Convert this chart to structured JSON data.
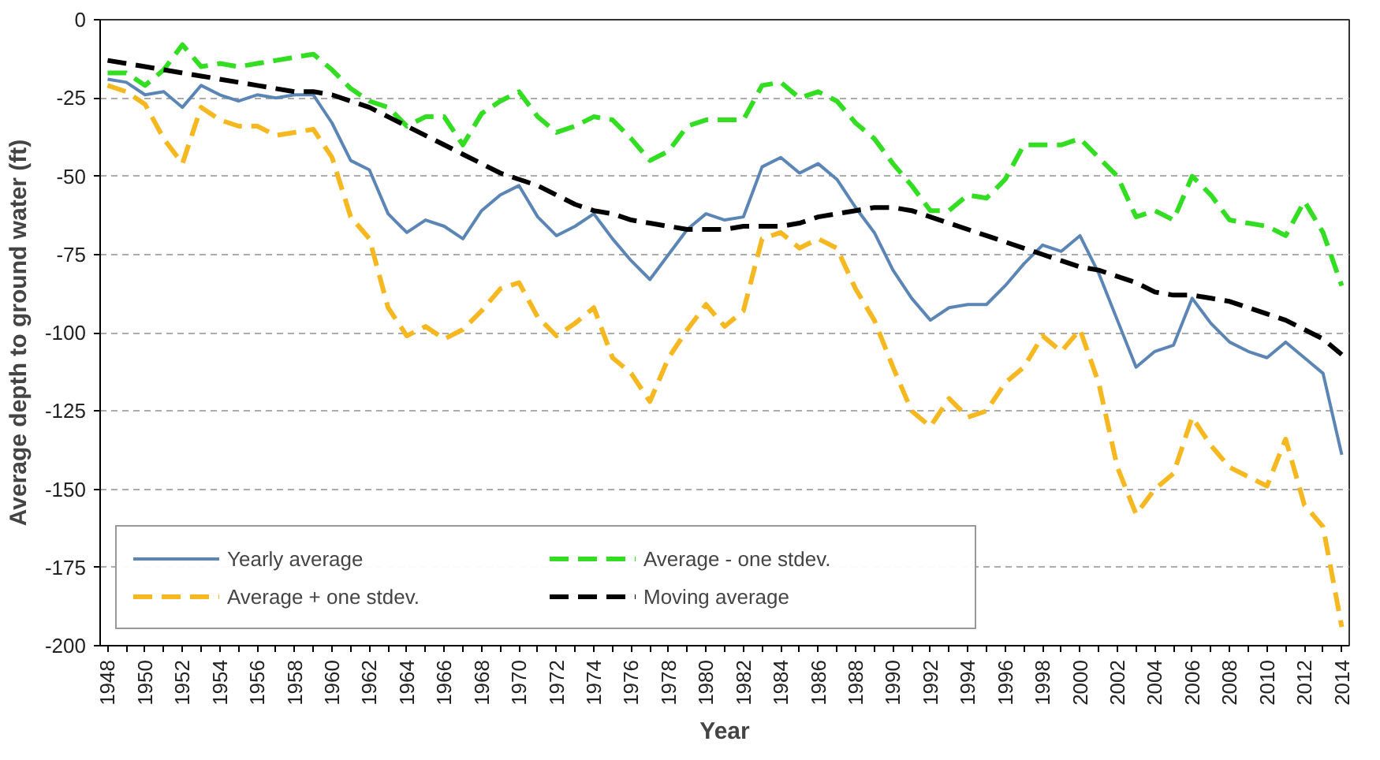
{
  "chart_data": {
    "type": "line",
    "xlabel": "Year",
    "ylabel": "Average depth to ground water (ft)",
    "x": [
      1948,
      1949,
      1950,
      1951,
      1952,
      1953,
      1954,
      1955,
      1956,
      1957,
      1958,
      1959,
      1960,
      1961,
      1962,
      1963,
      1964,
      1965,
      1966,
      1967,
      1968,
      1969,
      1970,
      1971,
      1972,
      1973,
      1974,
      1975,
      1976,
      1977,
      1978,
      1979,
      1980,
      1981,
      1982,
      1983,
      1984,
      1985,
      1986,
      1987,
      1988,
      1989,
      1990,
      1991,
      1992,
      1993,
      1994,
      1995,
      1996,
      1997,
      1998,
      1999,
      2000,
      2001,
      2002,
      2003,
      2004,
      2005,
      2006,
      2007,
      2008,
      2009,
      2010,
      2011,
      2012,
      2013,
      2014
    ],
    "series": [
      {
        "name": "Yearly average",
        "color": "#5b85b5",
        "line_style": "solid",
        "values": [
          -19,
          -20,
          -24,
          -23,
          -28,
          -21,
          -24,
          -26,
          -24,
          -25,
          -24,
          -24,
          -33,
          -45,
          -48,
          -62,
          -68,
          -64,
          -66,
          -70,
          -61,
          -56,
          -53,
          -63,
          -69,
          -66,
          -62,
          -70,
          -77,
          -83,
          -75,
          -67,
          -62,
          -64,
          -63,
          -47,
          -44,
          -49,
          -46,
          -51,
          -60,
          -68,
          -80,
          -89,
          -96,
          -92,
          -91,
          -91,
          -85,
          -78,
          -72,
          -74,
          -69,
          -81,
          -96,
          -111,
          -106,
          -104,
          -89,
          -97,
          -103,
          -106,
          -108,
          -103,
          -108,
          -113,
          -139
        ]
      },
      {
        "name": "Average + one stdev.",
        "color": "#f5b820",
        "line_style": "dashed",
        "values": [
          -21,
          -23,
          -27,
          -38,
          -46,
          -28,
          -32,
          -34,
          -34,
          -37,
          -36,
          -35,
          -44,
          -63,
          -70,
          -92,
          -101,
          -98,
          -102,
          -99,
          -93,
          -86,
          -84,
          -95,
          -101,
          -97,
          -92,
          -108,
          -113,
          -122,
          -108,
          -99,
          -91,
          -98,
          -93,
          -70,
          -68,
          -73,
          -70,
          -73,
          -86,
          -96,
          -111,
          -125,
          -130,
          -121,
          -127,
          -125,
          -116,
          -111,
          -101,
          -106,
          -99,
          -116,
          -143,
          -158,
          -150,
          -145,
          -127,
          -136,
          -143,
          -146,
          -149,
          -134,
          -155,
          -162,
          -194
        ]
      },
      {
        "name": "Average - one stdev.",
        "color": "#33dd22",
        "line_style": "dashed",
        "values": [
          -17,
          -17,
          -21,
          -16,
          -8,
          -15,
          -14,
          -15,
          -14,
          -13,
          -12,
          -11,
          -16,
          -22,
          -26,
          -28,
          -34,
          -31,
          -31,
          -40,
          -30,
          -26,
          -23,
          -31,
          -36,
          -34,
          -31,
          -32,
          -38,
          -45,
          -42,
          -34,
          -32,
          -32,
          -32,
          -21,
          -20,
          -25,
          -23,
          -26,
          -33,
          -38,
          -46,
          -53,
          -61,
          -61,
          -56,
          -57,
          -51,
          -40,
          -40,
          -40,
          -38,
          -44,
          -50,
          -63,
          -61,
          -64,
          -50,
          -56,
          -64,
          -65,
          -66,
          -69,
          -58,
          -68,
          -85
        ]
      },
      {
        "name": "Moving average",
        "color": "#000000",
        "line_style": "dashed",
        "values": [
          -13,
          -14,
          -15,
          -16,
          -17,
          -18,
          -19,
          -20,
          -21,
          -22,
          -23,
          -23,
          -24,
          -26,
          -28,
          -31,
          -34,
          -37,
          -40,
          -43,
          -46,
          -49,
          -51,
          -53,
          -56,
          -59,
          -61,
          -62,
          -64,
          -65,
          -66,
          -67,
          -67,
          -67,
          -66,
          -66,
          -66,
          -65,
          -63,
          -62,
          -61,
          -60,
          -60,
          -61,
          -63,
          -65,
          -67,
          -69,
          -71,
          -73,
          -75,
          -77,
          -79,
          -80,
          -82,
          -84,
          -87,
          -88,
          -88,
          -89,
          -90,
          -92,
          -94,
          -96,
          -99,
          -102,
          -107
        ]
      }
    ],
    "xlim": [
      1947.6,
      2014.4
    ],
    "xticks": [
      1948,
      {
        "value": 1949,
        "label": null
      },
      1950,
      {
        "value": 1951,
        "label": null
      },
      1952,
      {
        "value": 1953,
        "label": null
      },
      1954,
      {
        "value": 1955,
        "label": null
      },
      1956,
      {
        "value": 1957,
        "label": null
      },
      1958,
      {
        "value": 1959,
        "label": null
      },
      1960,
      {
        "value": 1961,
        "label": null
      },
      1962,
      {
        "value": 1963,
        "label": null
      },
      1964,
      {
        "value": 1965,
        "label": null
      },
      1966,
      {
        "value": 1967,
        "label": null
      },
      1968,
      {
        "value": 1969,
        "label": null
      },
      1970,
      {
        "value": 1971,
        "label": null
      },
      1972,
      {
        "value": 1973,
        "label": null
      },
      1974,
      {
        "value": 1975,
        "label": null
      },
      1976,
      {
        "value": 1977,
        "label": null
      },
      1978,
      {
        "value": 1979,
        "label": null
      },
      1980,
      {
        "value": 1981,
        "label": null
      },
      1982,
      {
        "value": 1983,
        "label": null
      },
      1984,
      {
        "value": 1985,
        "label": null
      },
      1986,
      {
        "value": 1987,
        "label": null
      },
      1988,
      {
        "value": 1989,
        "label": null
      },
      1990,
      {
        "value": 1991,
        "label": null
      },
      1992,
      {
        "value": 1993,
        "label": null
      },
      1994,
      {
        "value": 1995,
        "label": null
      },
      1996,
      {
        "value": 1997,
        "label": null
      },
      1998,
      {
        "value": 1999,
        "label": null
      },
      2000,
      {
        "value": 2001,
        "label": null
      },
      2002,
      {
        "value": 2003,
        "label": null
      },
      2004,
      {
        "value": 2005,
        "label": null
      },
      2006,
      {
        "value": 2007,
        "label": null
      },
      2008,
      {
        "value": 2009,
        "label": null
      },
      2010,
      {
        "value": 2011,
        "label": null
      },
      2012,
      {
        "value": 2013,
        "label": null
      },
      2014
    ],
    "ylim": [
      -200,
      0
    ],
    "yticks": [
      -200,
      -175,
      -150,
      -125,
      -100,
      -75,
      -50,
      -25,
      0
    ],
    "grid": "y",
    "legend": "bottom left",
    "marker": "none"
  }
}
